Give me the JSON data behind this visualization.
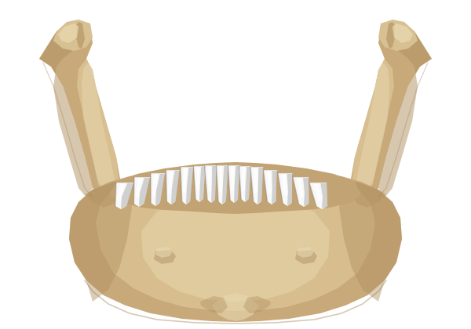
{
  "background_color": "#ffffff",
  "bone_base": "#c8a97a",
  "bone_light": "#dfc99a",
  "bone_lighter": "#e8d8b0",
  "bone_dark": "#9a7a4a",
  "bone_shadow": "#b09060",
  "bone_inner": "#e0c898",
  "tooth_white": "#f8f8f8",
  "tooth_off": "#e8e8e8",
  "tooth_shadow": "#a0a0a0",
  "tooth_dark": "#707070",
  "figsize": [
    6.0,
    4.2
  ],
  "dpi": 100
}
